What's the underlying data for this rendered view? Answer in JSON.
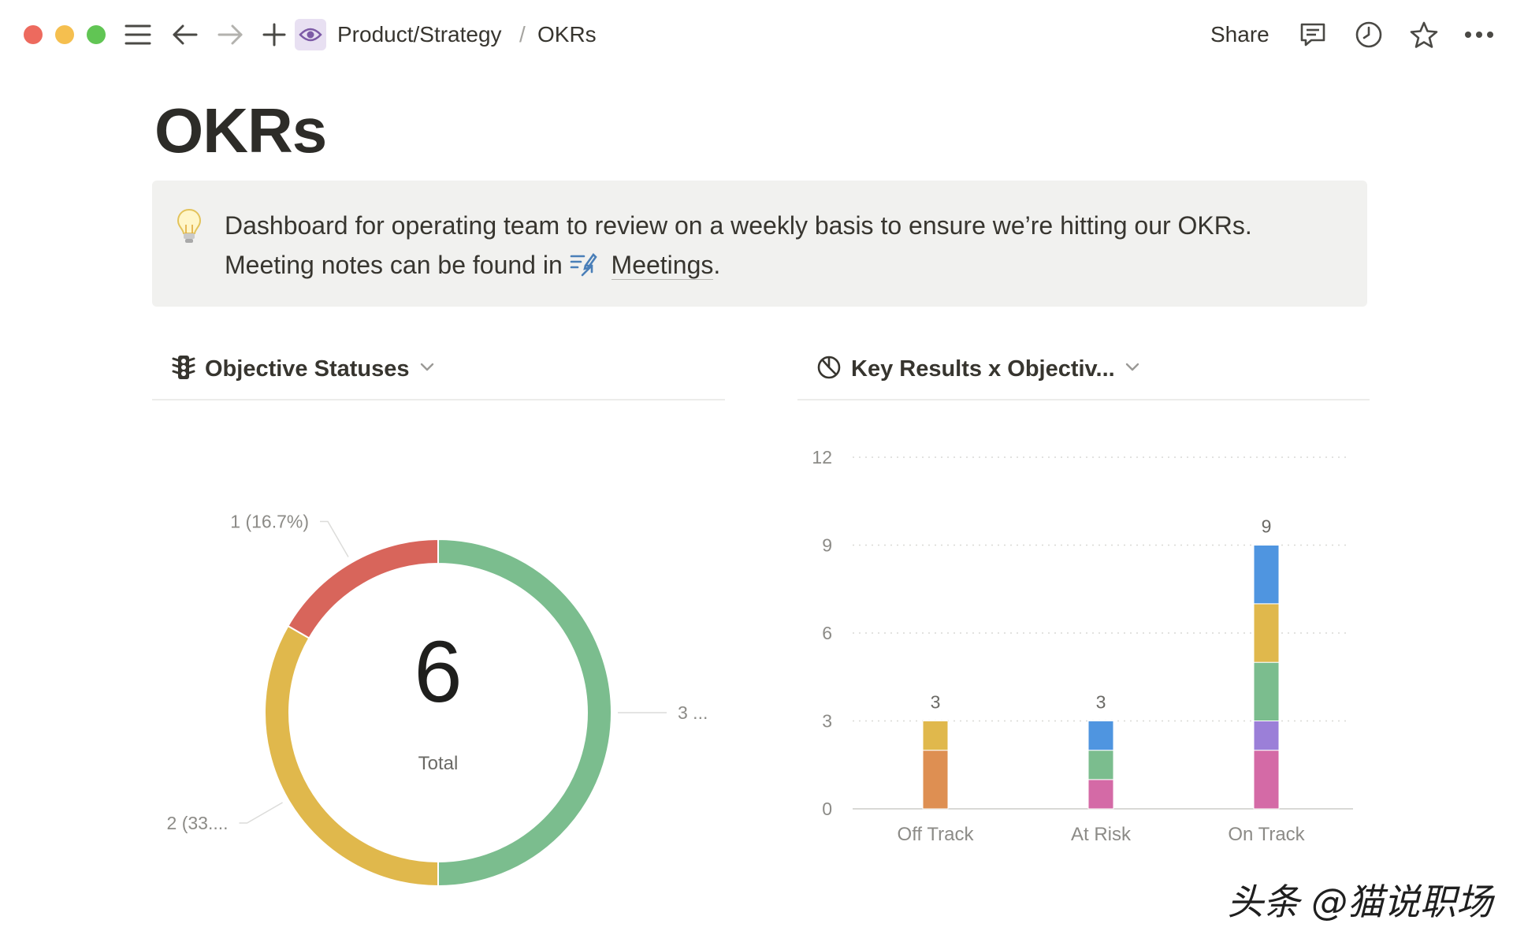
{
  "window": {
    "traffic_lights": [
      "close",
      "minimize",
      "zoom"
    ]
  },
  "toolbar": {
    "menu_icon": "hamburger-icon",
    "back_icon": "arrow-left-icon",
    "forward_icon": "arrow-right-icon",
    "new_icon": "plus-icon",
    "page_icon": "eye-icon",
    "share_label": "Share",
    "comments_icon": "comment-icon",
    "updates_icon": "clock-icon",
    "favorite_icon": "star-icon",
    "more_icon": "more-icon"
  },
  "breadcrumb": {
    "parent": "Product/Strategy",
    "separator": "/",
    "current": "OKRs"
  },
  "page": {
    "title": "OKRs"
  },
  "callout": {
    "icon": "lightbulb-icon",
    "line1": "Dashboard for operating team to review on a weekly basis to ensure we’re hitting our OKRs.",
    "line2_prefix": "Meeting notes can be found in ",
    "link_icon": "meetings-icon",
    "link_label": "Meetings",
    "line2_suffix": "."
  },
  "panels": {
    "left": {
      "icon": "traffic-light-icon",
      "title": "Objective Statuses"
    },
    "right": {
      "icon": "pie-chart-icon",
      "title": "Key Results x Objectiv..."
    }
  },
  "colors": {
    "green": "#7bbd8e",
    "yellow": "#e0b84c",
    "red": "#d8655b",
    "blue": "#4f95e0",
    "pink": "#d46aa6",
    "purple": "#9b7fd8",
    "orange": "#de8f52"
  },
  "watermark": "头条 @猫说职场",
  "chart_data": [
    {
      "type": "pie",
      "variant": "donut",
      "center_value": "6",
      "center_label": "Total",
      "slices": [
        {
          "value": 3,
          "label": "3 ...",
          "color": "#7bbd8e"
        },
        {
          "value": 2,
          "label": "2 (33....",
          "color": "#e0b84c"
        },
        {
          "value": 1,
          "label": "1 (16.7%)",
          "color": "#d8655b"
        }
      ]
    },
    {
      "type": "bar",
      "stacked": true,
      "categories": [
        "Off Track",
        "At Risk",
        "On Track"
      ],
      "totals": [
        3,
        3,
        9
      ],
      "ylim": [
        0,
        12
      ],
      "yticks": [
        0,
        3,
        6,
        9,
        12
      ],
      "grid": true,
      "series": [
        {
          "color": "#de8f52",
          "values": [
            2,
            0,
            0
          ]
        },
        {
          "color": "#d46aa6",
          "values": [
            0,
            1,
            2
          ]
        },
        {
          "color": "#9b7fd8",
          "values": [
            0,
            0,
            1
          ]
        },
        {
          "color": "#7bbd8e",
          "values": [
            0,
            1,
            2
          ]
        },
        {
          "color": "#e0b84c",
          "values": [
            1,
            0,
            2
          ]
        },
        {
          "color": "#4f95e0",
          "values": [
            0,
            1,
            2
          ]
        }
      ]
    }
  ]
}
